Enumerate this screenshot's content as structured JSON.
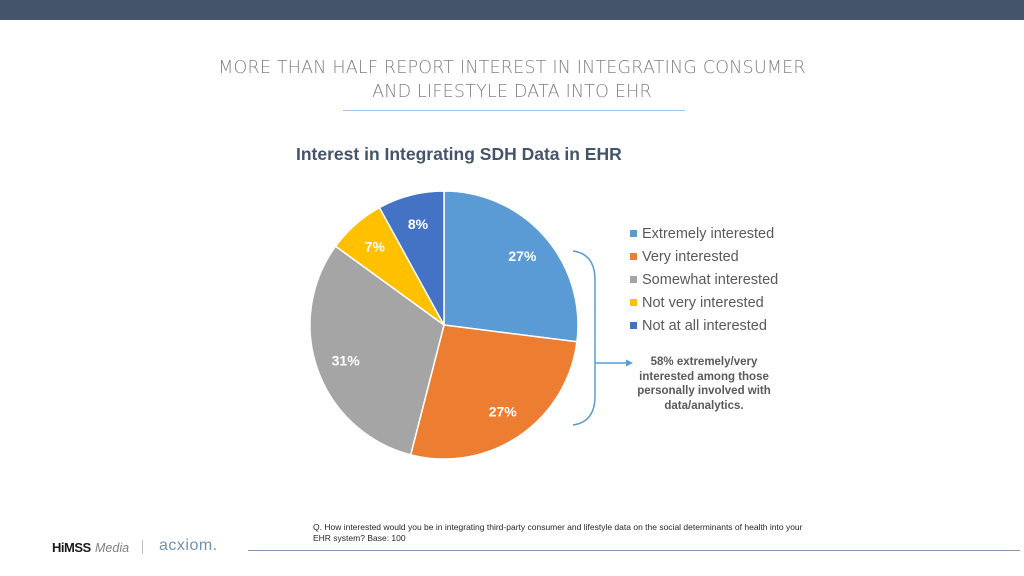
{
  "slide": {
    "title_line1": "MORE THAN HALF REPORT INTEREST IN INTEGRATING CONSUMER",
    "title_line2": "AND LIFESTYLE DATA INTO EHR"
  },
  "chart_data": {
    "type": "pie",
    "title": "Interest in Integrating SDH Data in EHR",
    "categories": [
      "Extremely interested",
      "Very interested",
      "Somewhat interested",
      "Not very interested",
      "Not at all interested"
    ],
    "values": [
      27,
      27,
      31,
      7,
      8
    ],
    "labels": [
      "27%",
      "27%",
      "31%",
      "7%",
      "8%"
    ],
    "colors": [
      "#5b9bd5",
      "#ed7d31",
      "#a5a5a5",
      "#ffc000",
      "#4472c4"
    ],
    "start_angle": "12 o'clock, clockwise",
    "legend_position": "right",
    "annotation": "58% extremely/very interested among those personally involved with data/analytics."
  },
  "callout": {
    "text": "58% extremely/very interested among those personally involved with data/analytics.",
    "bracket_color": "#5b9bd5"
  },
  "footer": {
    "question": "Q. How interested would you be in integrating third-party consumer and lifestyle data on the social determinants of health into your EHR  system? Base: 100",
    "logo_himss": "HiMSS",
    "logo_media": "Media",
    "logo_acxiom": "acxiom."
  },
  "theme": {
    "topbar": "#44546a",
    "title_color": "#7f7f7f",
    "chart_title_color": "#44546a"
  }
}
